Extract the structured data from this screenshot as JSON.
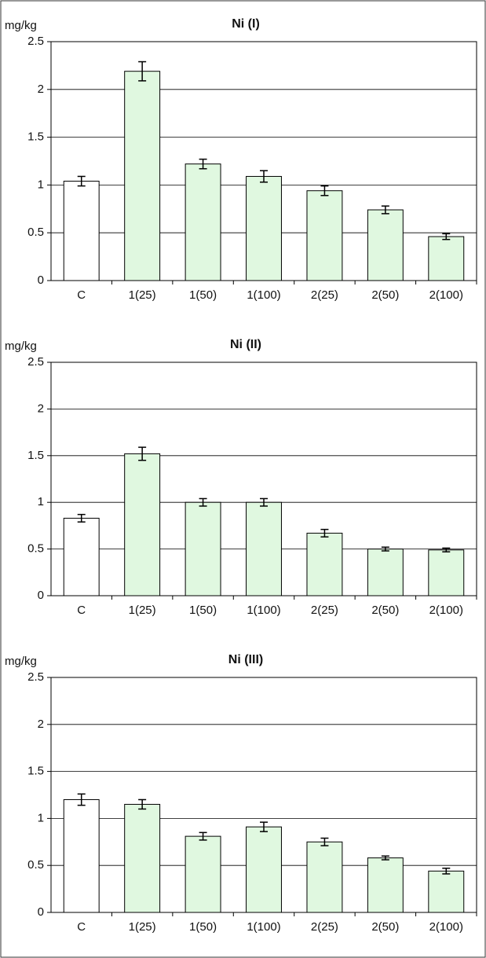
{
  "chart_data": [
    {
      "type": "bar",
      "title": "Ni (I)",
      "y_label": "mg/kg",
      "categories": [
        "C",
        "1(25)",
        "1(50)",
        "1(100)",
        "2(25)",
        "2(50)",
        "2(100)"
      ],
      "values": [
        1.04,
        2.19,
        1.22,
        1.09,
        0.94,
        0.74,
        0.46
      ],
      "errors": [
        0.05,
        0.1,
        0.05,
        0.06,
        0.05,
        0.04,
        0.03
      ],
      "colors": [
        "#ffffff",
        "#e0f8e0",
        "#e0f8e0",
        "#e0f8e0",
        "#e0f8e0",
        "#e0f8e0",
        "#e0f8e0"
      ],
      "ylim": [
        0,
        2.5
      ],
      "yticks": [
        0,
        0.5,
        1,
        1.5,
        2,
        2.5
      ],
      "grid": true
    },
    {
      "type": "bar",
      "title": "Ni (II)",
      "y_label": "mg/kg",
      "categories": [
        "C",
        "1(25)",
        "1(50)",
        "1(100)",
        "2(25)",
        "2(50)",
        "2(100)"
      ],
      "values": [
        0.83,
        1.52,
        1.0,
        1.0,
        0.67,
        0.5,
        0.49
      ],
      "errors": [
        0.04,
        0.07,
        0.04,
        0.04,
        0.04,
        0.02,
        0.02
      ],
      "colors": [
        "#ffffff",
        "#e0f8e0",
        "#e0f8e0",
        "#e0f8e0",
        "#e0f8e0",
        "#e0f8e0",
        "#e0f8e0"
      ],
      "ylim": [
        0,
        2.5
      ],
      "yticks": [
        0,
        0.5,
        1,
        1.5,
        2,
        2.5
      ],
      "grid": true
    },
    {
      "type": "bar",
      "title": "Ni (III)",
      "y_label": "mg/kg",
      "categories": [
        "C",
        "1(25)",
        "1(50)",
        "1(100)",
        "2(25)",
        "2(50)",
        "2(100)"
      ],
      "values": [
        1.2,
        1.15,
        0.81,
        0.91,
        0.75,
        0.58,
        0.44
      ],
      "errors": [
        0.06,
        0.05,
        0.04,
        0.05,
        0.04,
        0.02,
        0.03
      ],
      "colors": [
        "#ffffff",
        "#e0f8e0",
        "#e0f8e0",
        "#e0f8e0",
        "#e0f8e0",
        "#e0f8e0",
        "#e0f8e0"
      ],
      "ylim": [
        0,
        2.5
      ],
      "yticks": [
        0,
        0.5,
        1,
        1.5,
        2,
        2.5
      ],
      "grid": true
    }
  ]
}
